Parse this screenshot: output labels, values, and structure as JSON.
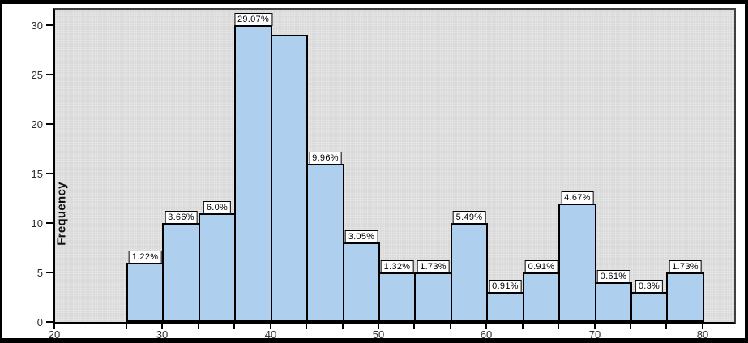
{
  "chart_data": {
    "type": "bar",
    "subtype": "histogram",
    "title": "",
    "xlabel": "",
    "ylabel": "Frequency",
    "x_tick_labels": [
      20,
      30,
      40,
      50,
      60,
      70,
      80
    ],
    "y_tick_labels": [
      0,
      5,
      10,
      15,
      20,
      25,
      30
    ],
    "xlim": [
      20,
      83
    ],
    "ylim": [
      0,
      31.5
    ],
    "bin_start": 26.667,
    "bin_width": 3.333,
    "grid": "off",
    "legend": "none",
    "plot_background": "#dadada",
    "bar_fill": "#aed0ee",
    "bar_border": "#000000",
    "label_box_background": "#ffffff",
    "bars": [
      {
        "bin": "26.7-30",
        "frequency": 6,
        "label": "1.22%"
      },
      {
        "bin": "30-33.3",
        "frequency": 10,
        "label": "3.66%"
      },
      {
        "bin": "33.3-36.7",
        "frequency": 11,
        "label": "6.0%"
      },
      {
        "bin": "36.7-40",
        "frequency": 30,
        "label": "29.07%"
      },
      {
        "bin": "40-43.3",
        "frequency": 29,
        "label": ""
      },
      {
        "bin": "43.3-46.7",
        "frequency": 16,
        "label": "9.96%"
      },
      {
        "bin": "46.7-50",
        "frequency": 8,
        "label": "3.05%"
      },
      {
        "bin": "50-53.3",
        "frequency": 5,
        "label": "1.32%"
      },
      {
        "bin": "53.3-56.7",
        "frequency": 5,
        "label": "1.73%"
      },
      {
        "bin": "56.7-60",
        "frequency": 10,
        "label": "5.49%"
      },
      {
        "bin": "60-63.3",
        "frequency": 3,
        "label": "0.91%"
      },
      {
        "bin": "63.3-66.7",
        "frequency": 5,
        "label": "0.91%"
      },
      {
        "bin": "66.7-70",
        "frequency": 12,
        "label": "4.67%"
      },
      {
        "bin": "70-73.3",
        "frequency": 4,
        "label": "0.61%"
      },
      {
        "bin": "73.3-76.7",
        "frequency": 3,
        "label": "0.3%"
      },
      {
        "bin": "76.7-80",
        "frequency": 5,
        "label": "1.73%"
      }
    ]
  }
}
